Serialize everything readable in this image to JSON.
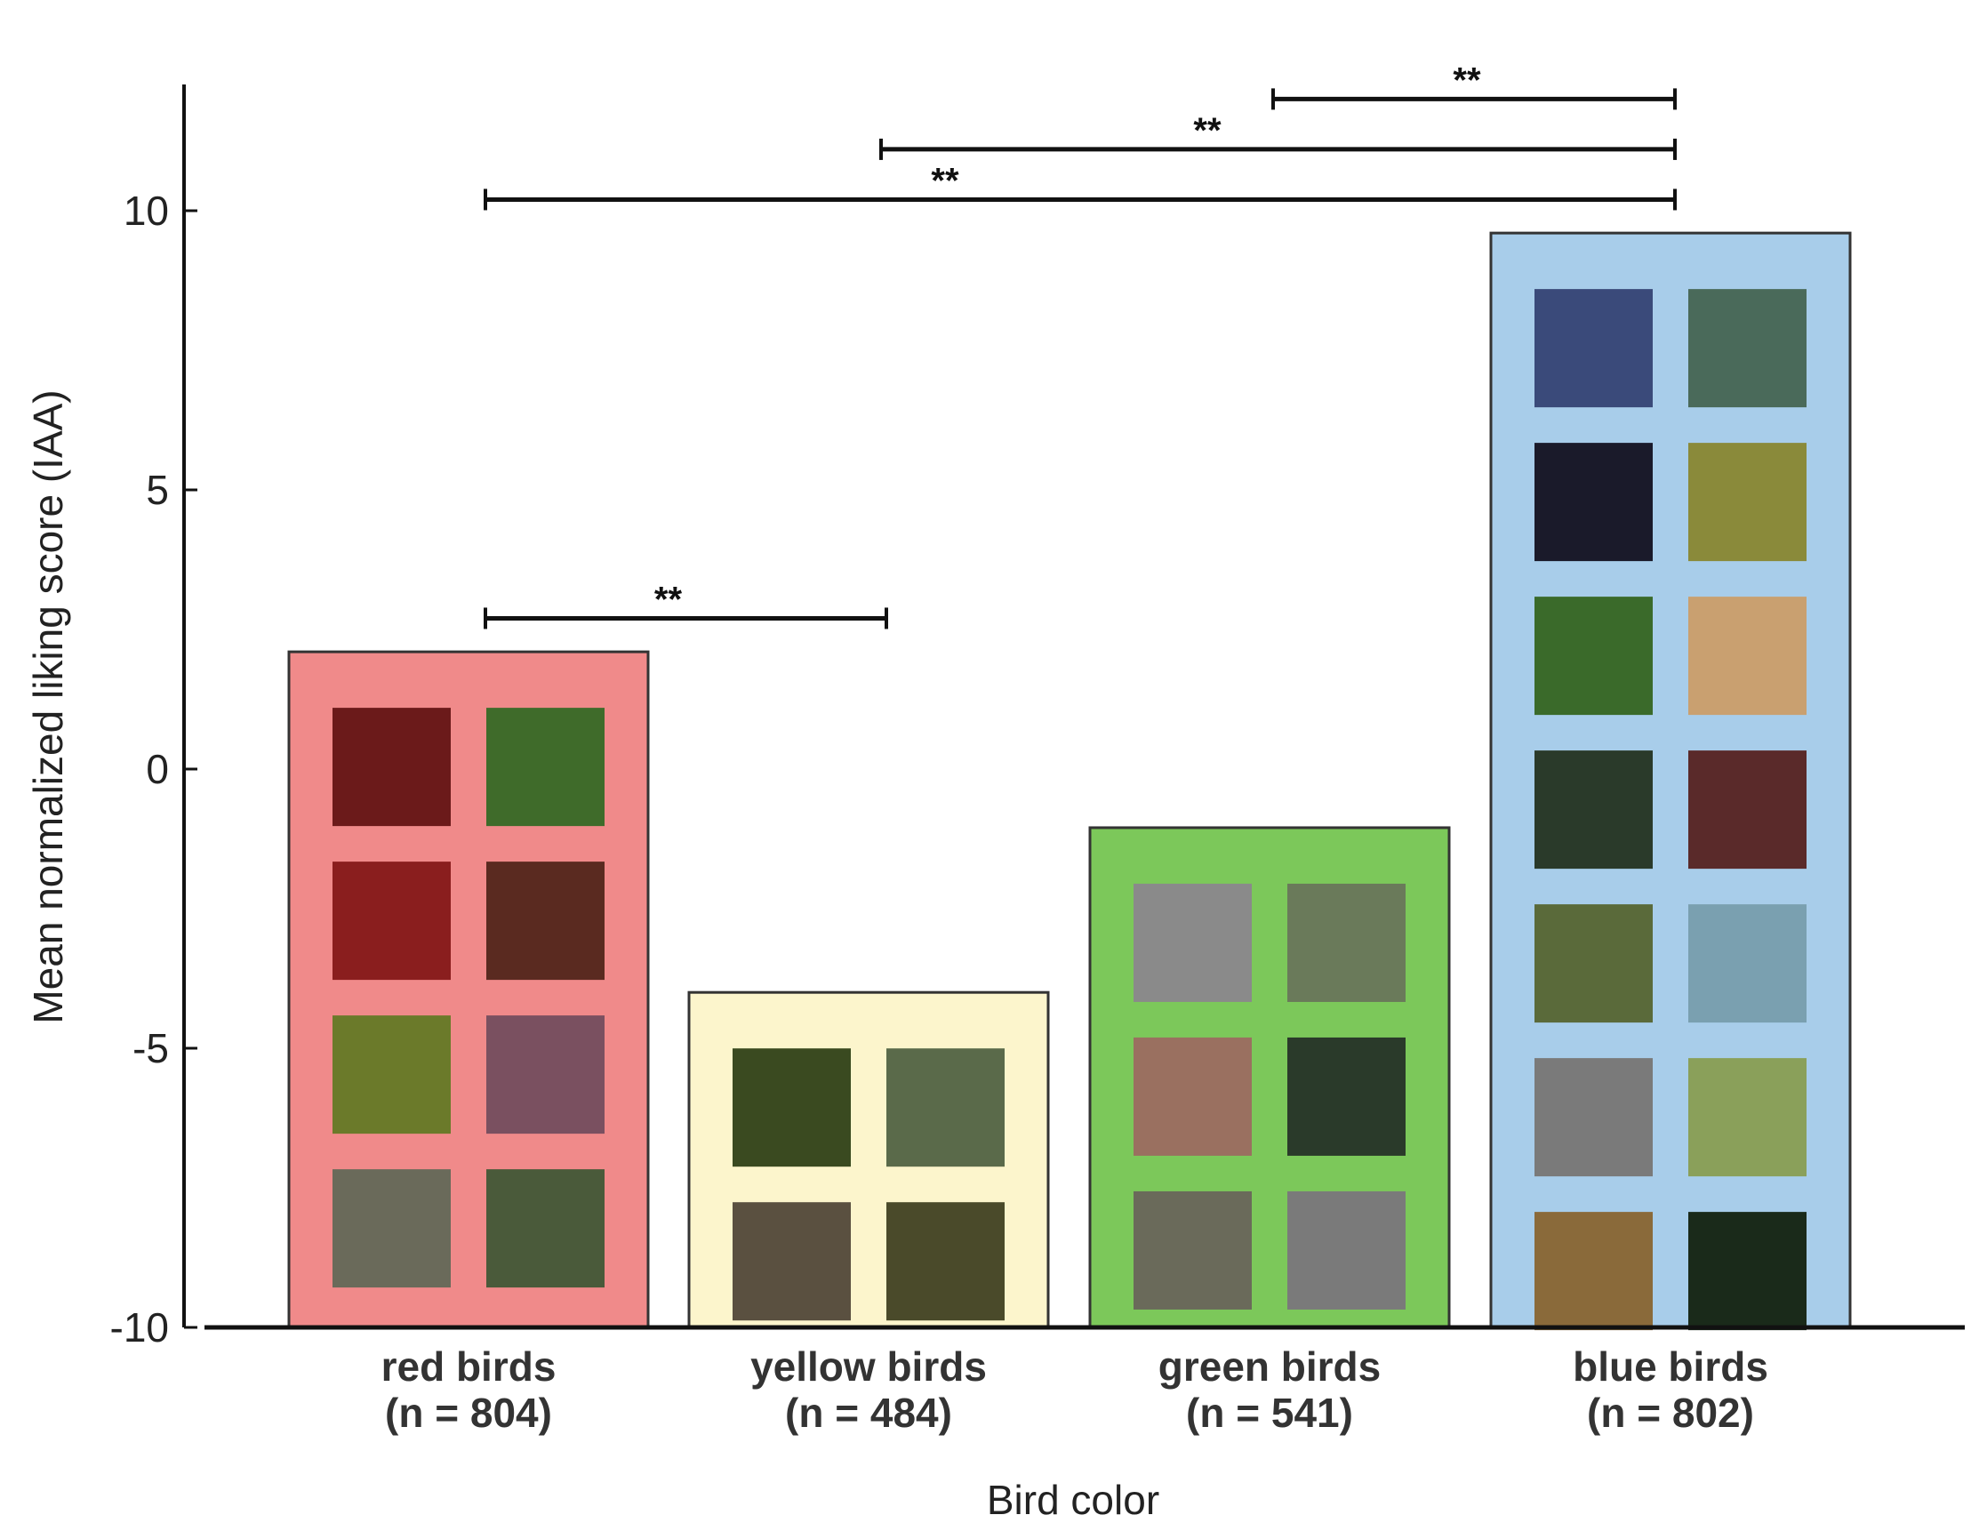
{
  "chart_data": {
    "type": "bar",
    "xlabel": "Bird color",
    "ylabel": "Mean normalized liking score (IAA)",
    "ylim": [
      -10,
      12.5
    ],
    "yticks": [
      10,
      5,
      0,
      -5,
      -10
    ],
    "categories": [
      {
        "name": "red birds",
        "n": "(n = 804)",
        "value": 2.1,
        "fill": "#f08a8a",
        "tiles": 8
      },
      {
        "name": "yellow birds",
        "n": "(n = 484)",
        "value": -4.0,
        "fill": "#fcf5cc",
        "tiles": 4
      },
      {
        "name": "green birds",
        "n": "(n = 541)",
        "value": -1.05,
        "fill": "#7cc85a",
        "tiles": 6
      },
      {
        "name": "blue birds",
        "n": "(n = 802)",
        "value": 9.6,
        "fill": "#a8cdea",
        "tiles": 14
      }
    ],
    "significance": [
      {
        "from": 0,
        "to": 1,
        "y": 2.7,
        "label": "**"
      },
      {
        "from": 0,
        "to": 3,
        "y": 10.2,
        "label": "**"
      },
      {
        "from": 1,
        "to": 3,
        "y": 11.1,
        "label": "**"
      },
      {
        "from": 2,
        "to": 3,
        "y": 12.0,
        "label": "**"
      }
    ]
  }
}
